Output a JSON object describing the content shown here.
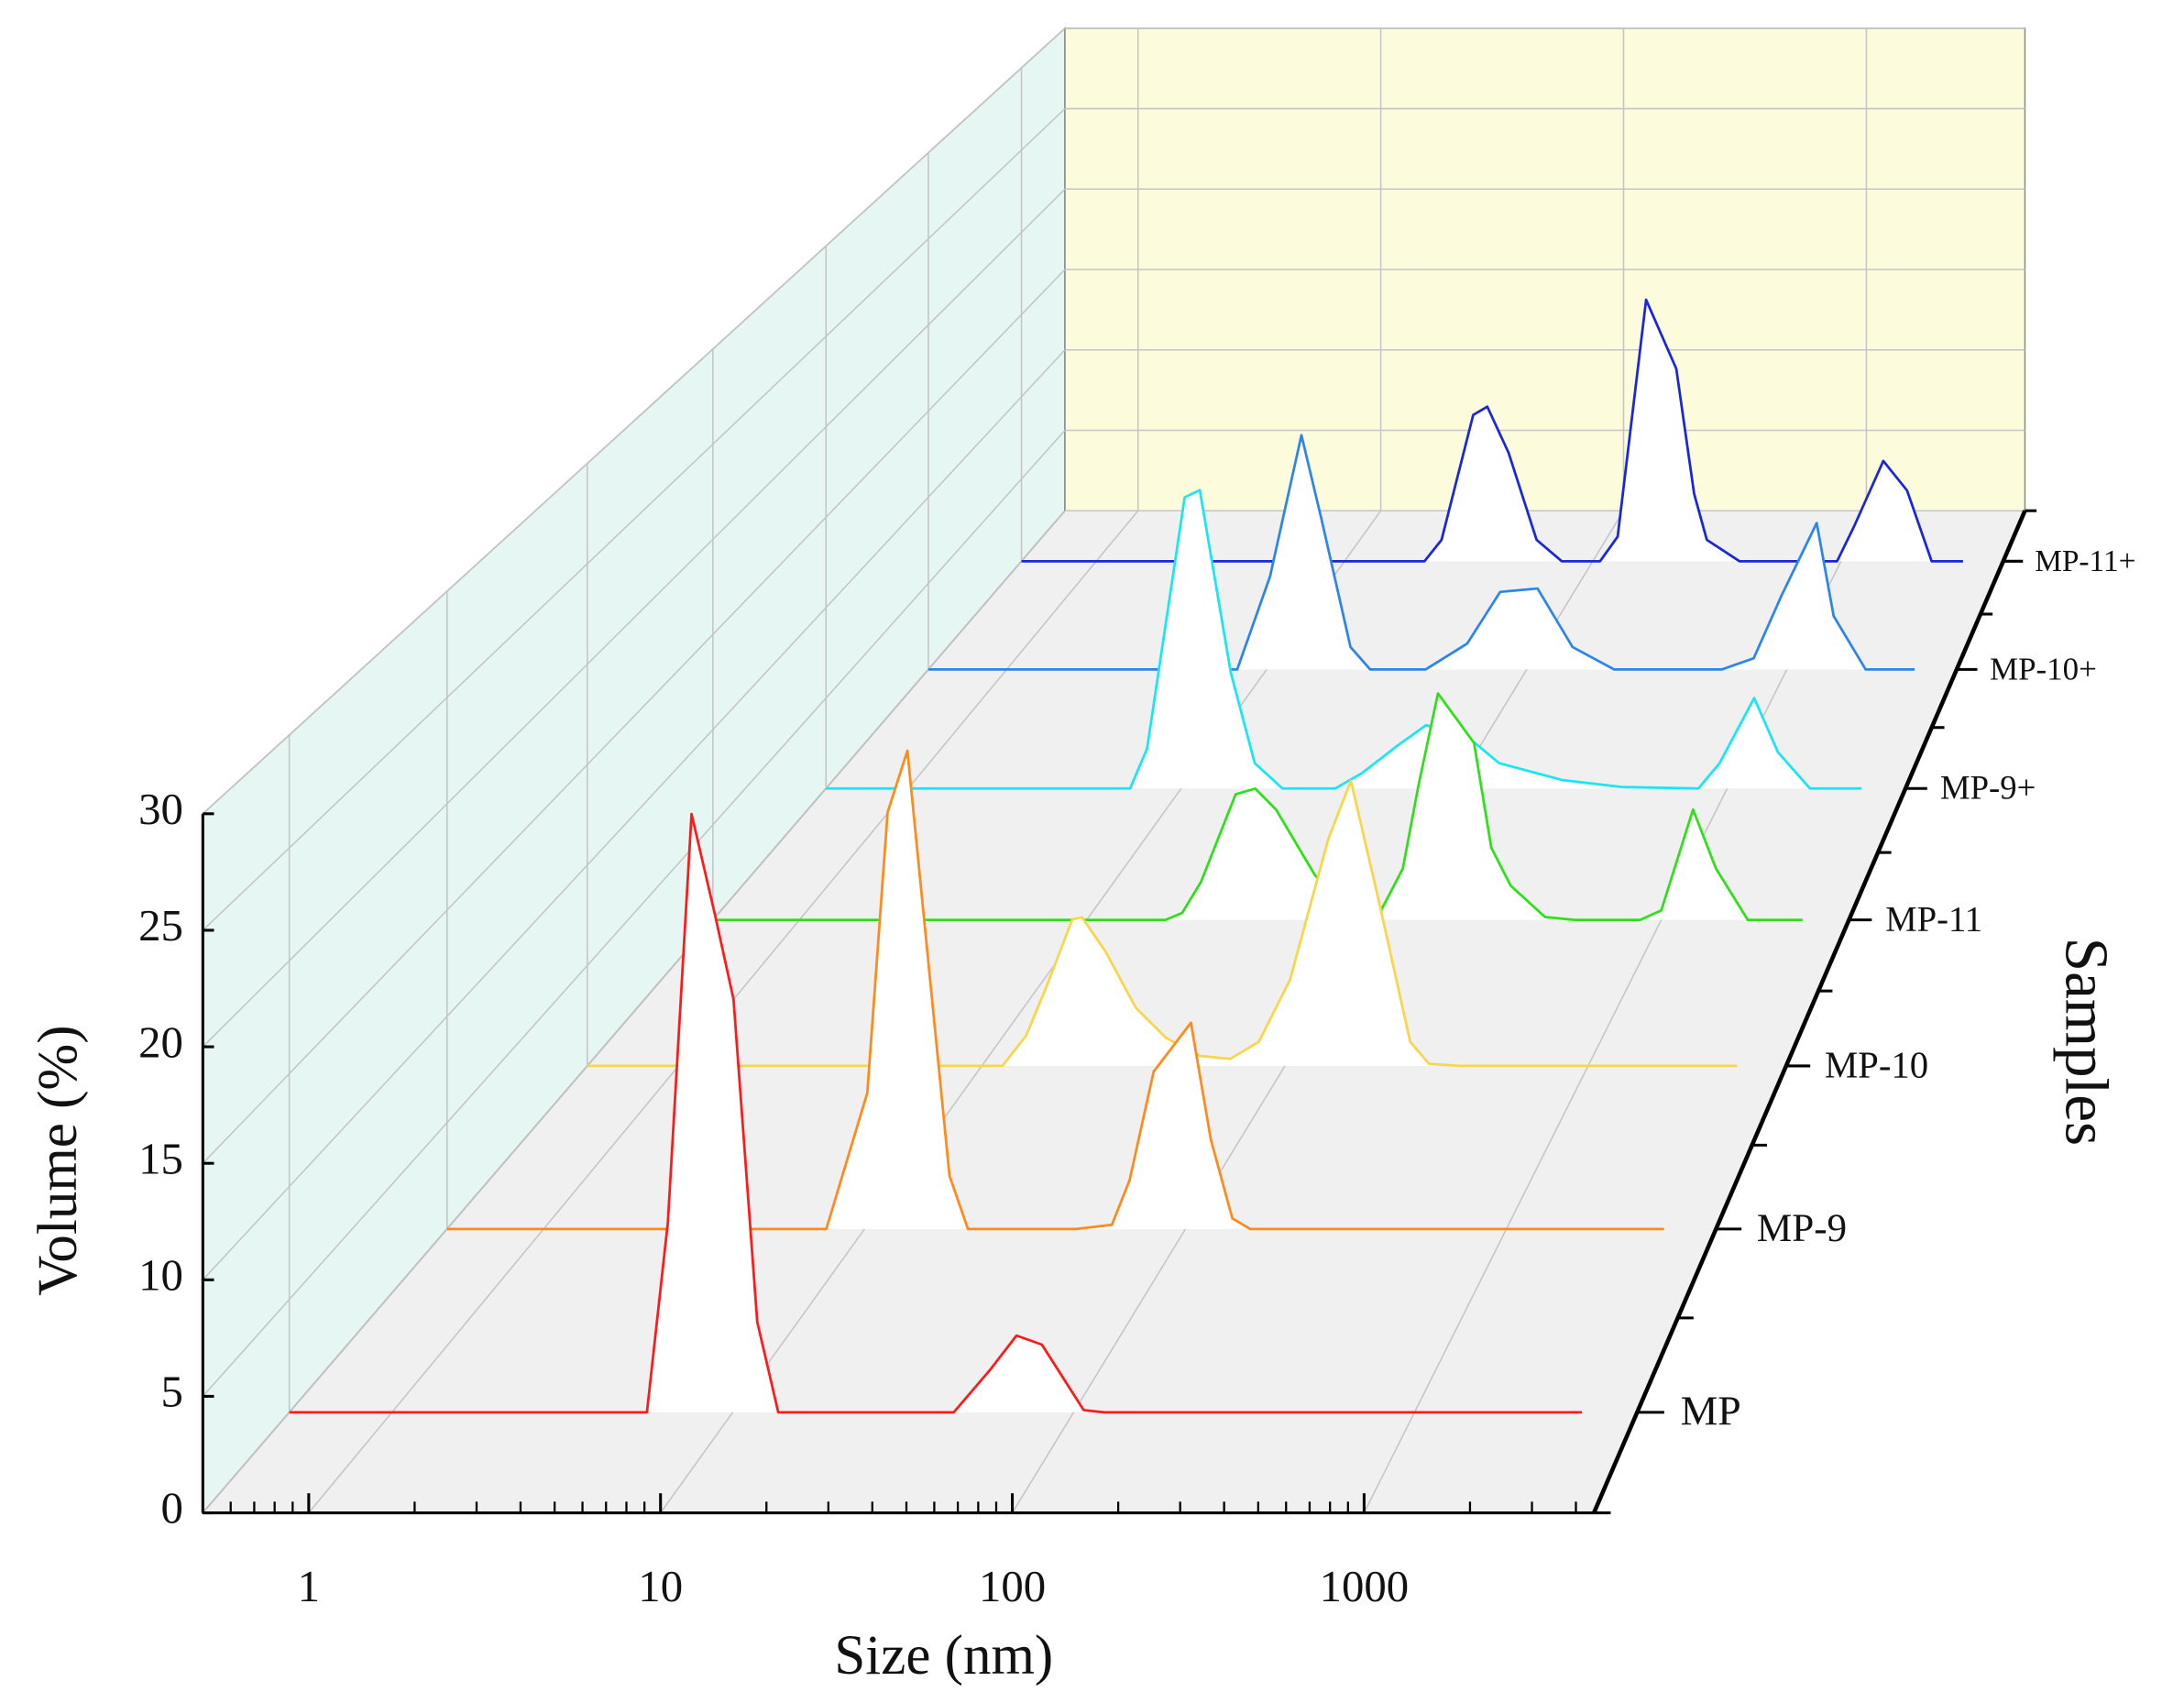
{
  "chart_data": {
    "type": "waterfall3d",
    "xlabel": "Size (nm)",
    "ylabel": "Volume (%)",
    "zlabel": "Samples",
    "xscale": "log",
    "xlim": [
      0.5,
      4500
    ],
    "xticks": [
      1,
      10,
      100,
      1000
    ],
    "xminorticks": [
      0.5,
      0.6,
      0.7,
      0.8,
      0.9,
      2,
      3,
      4,
      5,
      6,
      7,
      8,
      9,
      20,
      30,
      40,
      50,
      60,
      70,
      80,
      90,
      200,
      300,
      400,
      500,
      600,
      700,
      800,
      900,
      2000,
      3000,
      4000
    ],
    "ylim": [
      0,
      30
    ],
    "yticks": [
      0,
      5,
      10,
      15,
      20,
      25,
      30
    ],
    "grid": true,
    "series": [
      {
        "name": "MP",
        "color": "#ff1a1a",
        "x": [
          0.5,
          5.6,
          6.45,
          7.57,
          8.88,
          10.05,
          11.8,
          13.6,
          44.5,
          57,
          68,
          80.7,
          107,
          123,
          3100
        ],
        "values": [
          0,
          0,
          8.4,
          26.5,
          22.0,
          18.3,
          4.0,
          0,
          0,
          1.9,
          3.4,
          3.0,
          0.1,
          0,
          0
        ]
      },
      {
        "name": "MP-9",
        "color": "#ff8a1c",
        "x": [
          0.5,
          7.6,
          10.2,
          11.8,
          13.6,
          18.4,
          21,
          45.6,
          59,
          67,
          79.6,
          104,
          120,
          140,
          159,
          3100
        ],
        "values": [
          0,
          0,
          6.4,
          19.6,
          22.5,
          2.5,
          0,
          0,
          0.2,
          2.3,
          7.4,
          9.7,
          4.2,
          0.5,
          0,
          0
        ]
      },
      {
        "name": "MP-10",
        "color": "#f7d64a",
        "x": [
          0.5,
          11.7,
          14.0,
          16.4,
          19.9,
          21.4,
          25.6,
          32.2,
          40.5,
          52.5,
          66,
          82,
          104,
          139,
          165,
          202,
          259,
          299,
          381,
          3100
        ],
        "values": [
          0,
          0,
          1.5,
          4.0,
          7.3,
          7.4,
          5.7,
          2.9,
          1.4,
          0.5,
          0.35,
          1.2,
          4.3,
          11.3,
          14.2,
          8.5,
          1.2,
          0.1,
          0,
          0
        ]
      },
      {
        "name": "MP-11",
        "color": "#2ee01a",
        "x": [
          0.5,
          18.8,
          21.5,
          25,
          33,
          38.6,
          45.6,
          62.3,
          79.6,
          103,
          126,
          143,
          167,
          223,
          256,
          299,
          394,
          499,
          845,
          1000,
          1290,
          1550,
          2000,
          3100
        ],
        "values": [
          0,
          0,
          0.37,
          2.0,
          6.6,
          6.9,
          5.8,
          2.35,
          0.5,
          0.15,
          2.7,
          7.1,
          11.9,
          9.3,
          3.8,
          1.8,
          0.15,
          0,
          0,
          0.5,
          5.8,
          2.7,
          0,
          0
        ]
      },
      {
        "name": "MP-9+",
        "color": "#19e6f5",
        "x": [
          0.5,
          6.5,
          7.5,
          10.3,
          11.7,
          15.2,
          18.6,
          23.5,
          36.7,
          46,
          62.4,
          79,
          113,
          146,
          250,
          411,
          785,
          938,
          1256,
          1535,
          2010,
          3100
        ],
        "values": [
          0,
          0,
          2.2,
          16.1,
          16.5,
          6.4,
          1.4,
          0,
          0,
          0.85,
          2.4,
          3.5,
          2.8,
          1.4,
          0.46,
          0.08,
          0,
          1.4,
          5.0,
          2.0,
          0,
          0
        ]
      },
      {
        "name": "MP-10+",
        "color": "#2c86ea",
        "x": [
          0.5,
          7.7,
          10.3,
          13.6,
          16.2,
          21,
          25,
          40.8,
          59,
          79,
          110,
          150,
          217,
          562,
          746,
          955,
          1303,
          1514,
          2010,
          3100
        ],
        "values": [
          0,
          0,
          5.4,
          13.6,
          8.8,
          1.3,
          0,
          0,
          1.5,
          4.5,
          4.7,
          1.3,
          0,
          0,
          0.65,
          4.3,
          8.5,
          3.1,
          0,
          0
        ]
      },
      {
        "name": "MP-11+",
        "color": "#1a26d8",
        "x": [
          0.5,
          21,
          24.6,
          33,
          37.6,
          45.8,
          59.4,
          75,
          107,
          126,
          164,
          217,
          256,
          288,
          390,
          964,
          1127,
          1480,
          1845,
          2317,
          3100
        ],
        "values": [
          0,
          0,
          1.3,
          8.9,
          9.4,
          6.6,
          1.3,
          0,
          0,
          1.5,
          15.9,
          11.7,
          4.1,
          1.3,
          0,
          0,
          2.1,
          6.1,
          4.3,
          0,
          0
        ]
      }
    ]
  }
}
